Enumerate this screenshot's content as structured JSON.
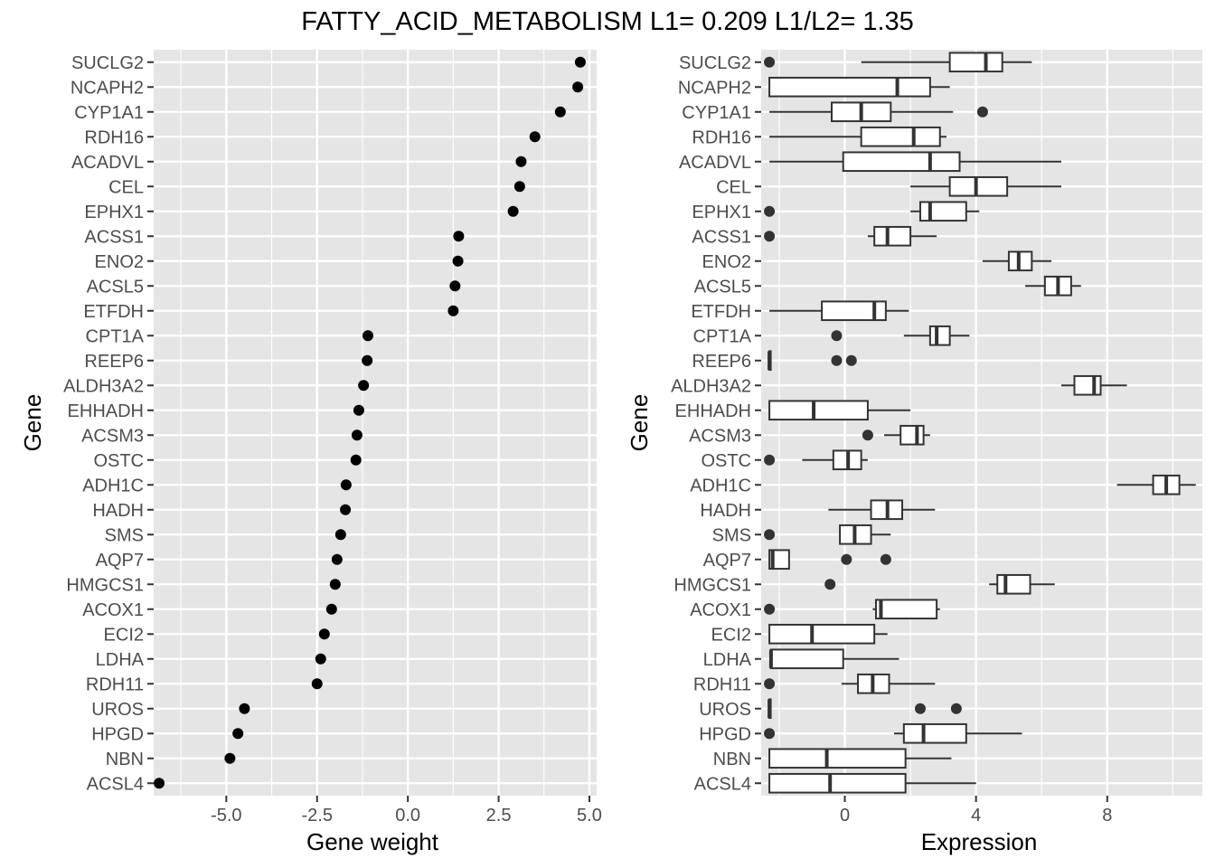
{
  "title": "FATTY_ACID_METABOLISM L1= 0.209 L1/L2= 1.35",
  "colors": {
    "panel_background": "#e5e5e5",
    "gridline": "#ffffff",
    "point": "#000000",
    "box_line": "#333333",
    "box_fill": "#ffffff",
    "tick_text": "#4d4d4d"
  },
  "chart_data": [
    {
      "type": "dot",
      "title": "",
      "xlabel": "Gene weight",
      "ylabel": "Gene",
      "xlim": [
        -7.0,
        5.2
      ],
      "xticks": [
        -5.0,
        -2.5,
        0.0,
        2.5,
        5.0
      ],
      "xtick_labels": [
        "-5.0",
        "-2.5",
        "0.0",
        "2.5",
        "5.0"
      ],
      "grid": true,
      "genes": [
        "SUCLG2",
        "NCAPH2",
        "CYP1A1",
        "RDH16",
        "ACADVL",
        "CEL",
        "EPHX1",
        "ACSS1",
        "ENO2",
        "ACSL5",
        "ETFDH",
        "CPT1A",
        "REEP6",
        "ALDH3A2",
        "EHHADH",
        "ACSM3",
        "OSTC",
        "ADH1C",
        "HADH",
        "SMS",
        "AQP7",
        "HMGCS1",
        "ACOX1",
        "ECI2",
        "LDHA",
        "RDH11",
        "UROS",
        "HPGD",
        "NBN",
        "ACSL4"
      ],
      "values": [
        4.75,
        4.68,
        4.2,
        3.5,
        3.12,
        3.08,
        2.9,
        1.4,
        1.38,
        1.3,
        1.25,
        -1.1,
        -1.12,
        -1.22,
        -1.35,
        -1.4,
        -1.43,
        -1.7,
        -1.72,
        -1.85,
        -1.95,
        -2.0,
        -2.1,
        -2.3,
        -2.4,
        -2.5,
        -4.5,
        -4.68,
        -4.9,
        -6.85
      ]
    },
    {
      "type": "boxplot",
      "title": "",
      "xlabel": "Expression",
      "ylabel": "Gene",
      "xlim": [
        -2.55,
        10.9
      ],
      "xticks": [
        0,
        4,
        8
      ],
      "xtick_labels": [
        "0",
        "4",
        "8"
      ],
      "grid": true,
      "genes": [
        "SUCLG2",
        "NCAPH2",
        "CYP1A1",
        "RDH16",
        "ACADVL",
        "CEL",
        "EPHX1",
        "ACSS1",
        "ENO2",
        "ACSL5",
        "ETFDH",
        "CPT1A",
        "REEP6",
        "ALDH3A2",
        "EHHADH",
        "ACSM3",
        "OSTC",
        "ADH1C",
        "HADH",
        "SMS",
        "AQP7",
        "HMGCS1",
        "ACOX1",
        "ECI2",
        "LDHA",
        "RDH11",
        "UROS",
        "HPGD",
        "NBN",
        "ACSL4"
      ],
      "boxes": [
        {
          "gene": "SUCLG2",
          "whisker_low": 0.5,
          "q1": 3.2,
          "median": 4.3,
          "q3": 4.8,
          "whisker_high": 5.7,
          "outliers": [
            -2.3
          ]
        },
        {
          "gene": "NCAPH2",
          "whisker_low": -2.3,
          "q1": -2.3,
          "median": 1.6,
          "q3": 2.6,
          "whisker_high": 3.2,
          "outliers": []
        },
        {
          "gene": "CYP1A1",
          "whisker_low": -2.3,
          "q1": -0.4,
          "median": 0.5,
          "q3": 1.4,
          "whisker_high": 3.3,
          "outliers": [
            4.2
          ]
        },
        {
          "gene": "RDH16",
          "whisker_low": -2.3,
          "q1": 0.5,
          "median": 2.1,
          "q3": 2.9,
          "whisker_high": 3.1,
          "outliers": []
        },
        {
          "gene": "ACADVL",
          "whisker_low": -2.3,
          "q1": -0.05,
          "median": 2.6,
          "q3": 3.5,
          "whisker_high": 6.6,
          "outliers": []
        },
        {
          "gene": "CEL",
          "whisker_low": 2.0,
          "q1": 3.2,
          "median": 4.0,
          "q3": 4.95,
          "whisker_high": 6.6,
          "outliers": []
        },
        {
          "gene": "EPHX1",
          "whisker_low": 2.0,
          "q1": 2.3,
          "median": 2.6,
          "q3": 3.7,
          "whisker_high": 4.1,
          "outliers": [
            -2.3
          ]
        },
        {
          "gene": "ACSS1",
          "whisker_low": 0.7,
          "q1": 0.9,
          "median": 1.3,
          "q3": 2.0,
          "whisker_high": 2.8,
          "outliers": [
            -2.3
          ]
        },
        {
          "gene": "ENO2",
          "whisker_low": 4.2,
          "q1": 5.0,
          "median": 5.3,
          "q3": 5.7,
          "whisker_high": 6.3,
          "outliers": []
        },
        {
          "gene": "ACSL5",
          "whisker_low": 5.5,
          "q1": 6.1,
          "median": 6.5,
          "q3": 6.9,
          "whisker_high": 7.2,
          "outliers": []
        },
        {
          "gene": "ETFDH",
          "whisker_low": -2.3,
          "q1": -0.7,
          "median": 0.9,
          "q3": 1.25,
          "whisker_high": 1.95,
          "outliers": []
        },
        {
          "gene": "CPT1A",
          "whisker_low": 1.8,
          "q1": 2.6,
          "median": 2.8,
          "q3": 3.2,
          "whisker_high": 3.8,
          "outliers": [
            -0.25
          ]
        },
        {
          "gene": "REEP6",
          "whisker_low": -2.3,
          "q1": -2.3,
          "median": -2.3,
          "q3": -2.3,
          "whisker_high": -2.3,
          "outliers": [
            -0.25,
            0.2
          ]
        },
        {
          "gene": "ALDH3A2",
          "whisker_low": 6.6,
          "q1": 7.0,
          "median": 7.6,
          "q3": 7.8,
          "whisker_high": 8.6,
          "outliers": []
        },
        {
          "gene": "EHHADH",
          "whisker_low": -2.3,
          "q1": -2.3,
          "median": -0.95,
          "q3": 0.7,
          "whisker_high": 2.0,
          "outliers": []
        },
        {
          "gene": "ACSM3",
          "whisker_low": 1.2,
          "q1": 1.7,
          "median": 2.2,
          "q3": 2.4,
          "whisker_high": 2.6,
          "outliers": [
            0.7
          ]
        },
        {
          "gene": "OSTC",
          "whisker_low": -1.3,
          "q1": -0.35,
          "median": 0.1,
          "q3": 0.5,
          "whisker_high": 0.7,
          "outliers": [
            -2.3
          ]
        },
        {
          "gene": "ADH1C",
          "whisker_low": 8.3,
          "q1": 9.4,
          "median": 9.8,
          "q3": 10.2,
          "whisker_high": 10.7,
          "outliers": []
        },
        {
          "gene": "HADH",
          "whisker_low": -0.5,
          "q1": 0.8,
          "median": 1.3,
          "q3": 1.75,
          "whisker_high": 2.75,
          "outliers": []
        },
        {
          "gene": "SMS",
          "whisker_low": -0.15,
          "q1": -0.15,
          "median": 0.3,
          "q3": 0.8,
          "whisker_high": 1.4,
          "outliers": [
            -2.3
          ]
        },
        {
          "gene": "AQP7",
          "whisker_low": -2.3,
          "q1": -2.3,
          "median": -2.2,
          "q3": -1.7,
          "whisker_high": -1.7,
          "outliers": [
            0.05,
            1.25
          ]
        },
        {
          "gene": "HMGCS1",
          "whisker_low": 4.4,
          "q1": 4.65,
          "median": 4.9,
          "q3": 5.65,
          "whisker_high": 6.4,
          "outliers": [
            -0.45
          ]
        },
        {
          "gene": "ACOX1",
          "whisker_low": 0.85,
          "q1": 0.95,
          "median": 1.1,
          "q3": 2.8,
          "whisker_high": 2.9,
          "outliers": [
            -2.3
          ]
        },
        {
          "gene": "ECI2",
          "whisker_low": -2.3,
          "q1": -2.3,
          "median": -1.0,
          "q3": 0.9,
          "whisker_high": 1.3,
          "outliers": []
        },
        {
          "gene": "LDHA",
          "whisker_low": -2.3,
          "q1": -2.25,
          "median": -2.25,
          "q3": -0.05,
          "whisker_high": 1.65,
          "outliers": []
        },
        {
          "gene": "RDH11",
          "whisker_low": -0.1,
          "q1": 0.4,
          "median": 0.85,
          "q3": 1.35,
          "whisker_high": 2.75,
          "outliers": [
            -2.3
          ]
        },
        {
          "gene": "UROS",
          "whisker_low": -2.3,
          "q1": -2.3,
          "median": -2.3,
          "q3": -2.3,
          "whisker_high": -2.3,
          "outliers": [
            2.3,
            3.4
          ]
        },
        {
          "gene": "HPGD",
          "whisker_low": 1.5,
          "q1": 1.8,
          "median": 2.4,
          "q3": 3.7,
          "whisker_high": 5.4,
          "outliers": [
            -2.3
          ]
        },
        {
          "gene": "NBN",
          "whisker_low": -2.3,
          "q1": -2.3,
          "median": -0.55,
          "q3": 1.85,
          "whisker_high": 3.25,
          "outliers": []
        },
        {
          "gene": "ACSL4",
          "whisker_low": -2.3,
          "q1": -2.3,
          "median": -0.45,
          "q3": 1.85,
          "whisker_high": 4.0,
          "outliers": []
        }
      ]
    }
  ]
}
